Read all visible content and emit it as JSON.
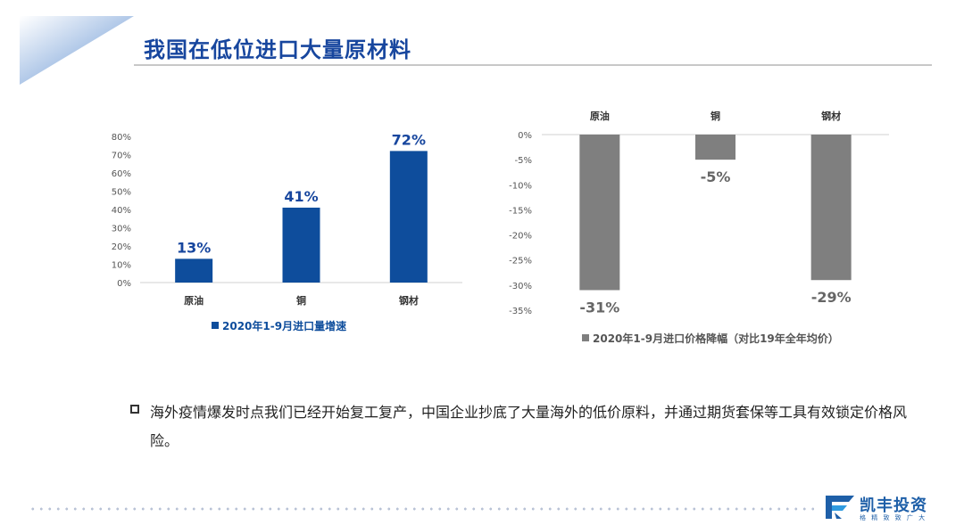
{
  "title": "我国在低位进口大量原材料",
  "chart_data": [
    {
      "type": "bar",
      "categories": [
        "原油",
        "铜",
        "钢材"
      ],
      "series": [
        {
          "name": "2020年1-9月进口量增速",
          "values": [
            13,
            41,
            72
          ],
          "labels": [
            "13%",
            "41%",
            "72%"
          ]
        }
      ],
      "yticks": [
        "80%",
        "70%",
        "60%",
        "50%",
        "40%",
        "30%",
        "20%",
        "10%",
        "0%"
      ],
      "ylim": [
        0,
        80
      ],
      "color": "#0e4d9c",
      "legend": "bottom"
    },
    {
      "type": "bar",
      "categories": [
        "原油",
        "铜",
        "钢材"
      ],
      "series": [
        {
          "name": "2020年1-9月进口价格降幅（对比19年全年均价）",
          "values": [
            -31,
            -5,
            -29
          ],
          "labels": [
            "-31%",
            "-5%",
            "-29%"
          ]
        }
      ],
      "yticks": [
        "0%",
        "-5%",
        "-10%",
        "-15%",
        "-20%",
        "-25%",
        "-30%",
        "-35%"
      ],
      "ylim": [
        -35,
        0
      ],
      "color": "#7f7f7f",
      "legend": "bottom"
    }
  ],
  "bullet": "海外疫情爆发时点我们已经开始复工复产，中国企业抄底了大量海外的低价原料，并通过期货套保等工具有效锁定价格风险。",
  "logo": {
    "name": "凯丰投资",
    "slogan": "格 精 致 致 广 大",
    "accent": "#1e5fa8"
  }
}
